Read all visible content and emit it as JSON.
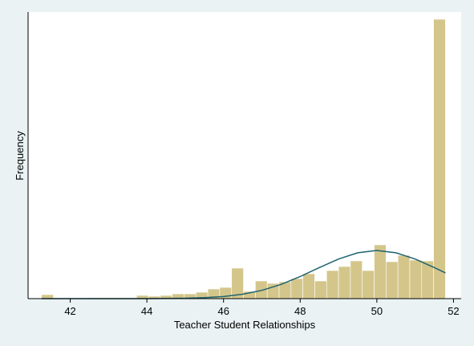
{
  "chart_data": {
    "type": "histogram",
    "xlabel": "Teacher Student Relationships",
    "ylabel": "Frequency",
    "bins": [
      41.25,
      41.56,
      41.87,
      42.18,
      42.49,
      42.8,
      43.11,
      43.42,
      43.73,
      44.04,
      44.35,
      44.66,
      44.97,
      45.28,
      45.59,
      45.9,
      46.21,
      46.52,
      46.83,
      47.14,
      47.45,
      47.76,
      48.07,
      48.38,
      48.69,
      49,
      49.31,
      49.62,
      49.93,
      50.24,
      50.55,
      50.86,
      51.17,
      51.48,
      51.79
    ],
    "values": [
      5,
      0,
      0,
      0,
      1,
      1,
      1,
      1,
      4,
      3,
      4,
      6,
      6,
      8,
      12,
      14,
      38,
      9,
      22,
      19,
      21,
      25,
      31,
      22,
      35,
      40,
      47,
      35,
      67,
      46,
      54,
      48,
      47,
      348
    ],
    "color": "#d4c68b",
    "density_curve": {
      "color": "#1f6370",
      "x": [
        41.25,
        42,
        43,
        44,
        45,
        45.5,
        46,
        46.5,
        47,
        47.5,
        48,
        48.5,
        49,
        49.5,
        50,
        50.5,
        51,
        51.5,
        51.79
      ],
      "y": [
        0,
        0,
        0,
        0.05,
        0.5,
        1.2,
        2.6,
        5.5,
        10.3,
        17.7,
        27.5,
        38.7,
        49.3,
        57.1,
        60,
        57.1,
        49.3,
        38.7,
        32.1
      ]
    },
    "xlim": [
      40.9,
      52.2
    ],
    "ylim": [
      0,
      357
    ],
    "xticks": [
      42,
      44,
      46,
      48,
      50,
      52
    ]
  }
}
